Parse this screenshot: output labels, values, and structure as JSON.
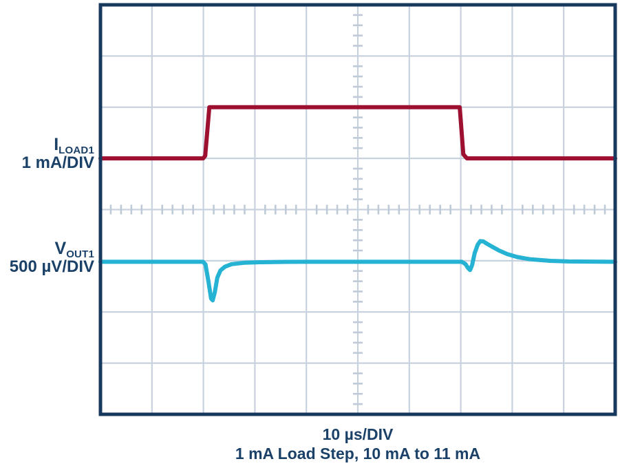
{
  "colors": {
    "background": "#FFFFFF",
    "border": "#17395E",
    "grid": "#C8D2DE",
    "tick": "#BFCAD8",
    "text": "#1B4168",
    "iload_trace": "#9E1030",
    "vout_trace": "#25B2D3"
  },
  "channel_labels": [
    {
      "symbol": "I",
      "subscript": "LOAD1",
      "scale": "1 mA/DIV"
    },
    {
      "symbol": "V",
      "subscript": "OUT1",
      "scale": "500 µV/DIV"
    }
  ],
  "chart_data": {
    "type": "line",
    "subtype": "oscilloscope",
    "timebase_label": "10 µs/DIV",
    "subtitle": "1 mA Load Step, 10 mA to 11 mA",
    "x_units": "µs",
    "x_per_div": 10,
    "x_range": [
      0,
      100
    ],
    "divisions": {
      "x": 10,
      "y": 8
    },
    "minor_ticks_per_div": 5,
    "grid": true,
    "legend_position": "left",
    "series": [
      {
        "name": "ILOAD1",
        "units": "mA",
        "scale_per_div": 1,
        "scale_label": "1 mA/DIV",
        "baseline_value": 10,
        "baseline_div_from_top": 3.0,
        "color_key": "iload_trace",
        "points": [
          [
            0,
            10
          ],
          [
            19.95,
            10
          ],
          [
            20.35,
            10.05
          ],
          [
            21.15,
            11
          ],
          [
            69.8,
            11
          ],
          [
            70.5,
            10.08
          ],
          [
            71.2,
            10
          ],
          [
            100,
            10
          ]
        ]
      },
      {
        "name": "VOUT1",
        "units": "µV",
        "scale_per_div": 500,
        "scale_label": "500 µV/DIV",
        "baseline_value": 0,
        "baseline_div_from_top": 5.02,
        "color_key": "vout_trace",
        "points": [
          [
            0,
            0
          ],
          [
            19.9,
            0
          ],
          [
            20.4,
            -25
          ],
          [
            21.0,
            -200
          ],
          [
            21.5,
            -360
          ],
          [
            21.8,
            -377
          ],
          [
            22.2,
            -300
          ],
          [
            22.7,
            -155
          ],
          [
            23.3,
            -85
          ],
          [
            24.2,
            -47
          ],
          [
            25.5,
            -23
          ],
          [
            27.9,
            -10
          ],
          [
            31,
            -4
          ],
          [
            36,
            -1
          ],
          [
            40,
            0
          ],
          [
            70.2,
            0
          ],
          [
            70.9,
            -22
          ],
          [
            71.4,
            -60
          ],
          [
            71.8,
            -81
          ],
          [
            72.2,
            -32
          ],
          [
            72.7,
            85
          ],
          [
            73.3,
            168
          ],
          [
            73.8,
            202
          ],
          [
            74.4,
            198
          ],
          [
            75.1,
            176
          ],
          [
            76.2,
            144
          ],
          [
            77.5,
            108
          ],
          [
            79.1,
            74
          ],
          [
            81.0,
            46
          ],
          [
            83.4,
            25
          ],
          [
            87.4,
            9
          ],
          [
            91,
            3
          ],
          [
            100,
            0
          ]
        ]
      }
    ]
  }
}
